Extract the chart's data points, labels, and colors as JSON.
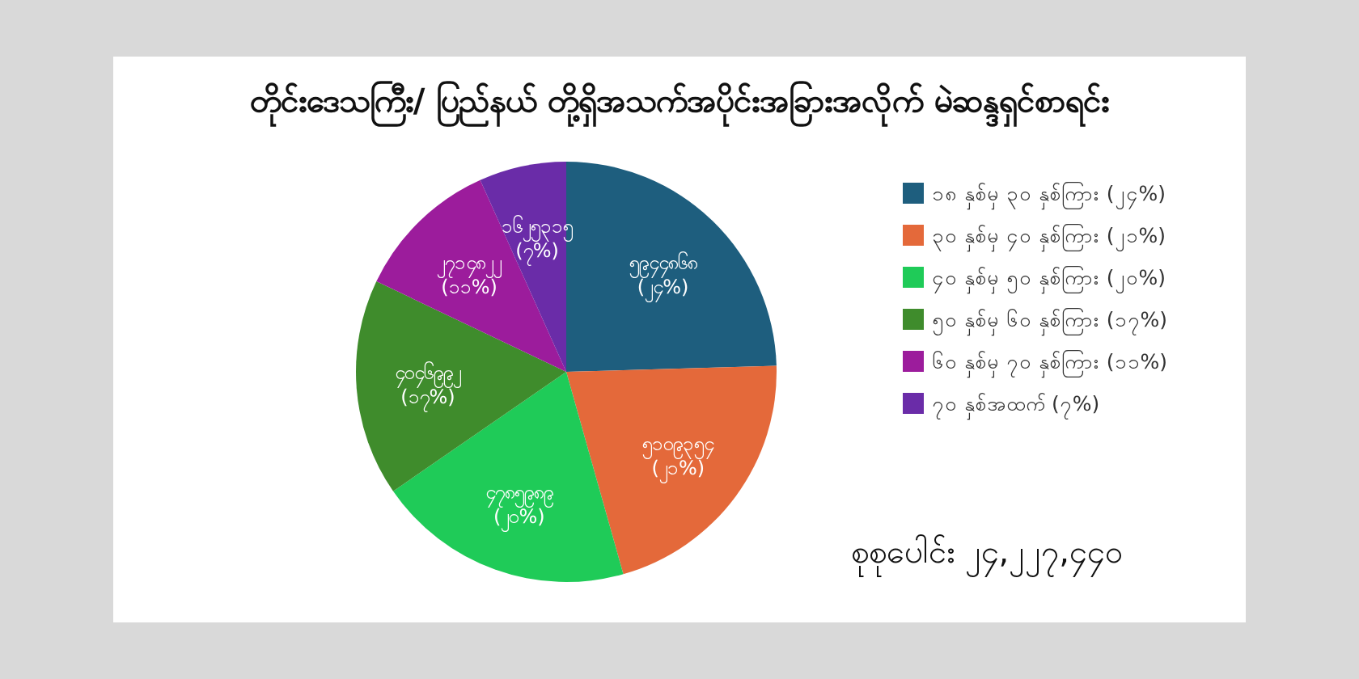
{
  "chart_data": {
    "type": "pie",
    "title": "တိုင်းဒေသကြီး/ ပြည်နယ် တို့ရှိအသက်အပိုင်းအခြားအလိုက် မဲဆန္ဒရှင်စာရင်း",
    "categories": [
      "၁၈ နှစ်မှ ၃၀ နှစ်ကြား (၂၄%)",
      "၃၀ နှစ်မှ ၄၀ နှစ်ကြား (၂၁%)",
      "၄၀ နှစ်မှ ၅၀ နှစ်ကြား (၂၀%)",
      "၅၀ နှစ်မှ ၆၀ နှစ်ကြား (၁၇%)",
      "၆၀ နှစ်မှ ၇၀ နှစ်ကြား (၁၁%)",
      "၇၀ နှစ်အထက် (၇%)"
    ],
    "values": [
      5944868,
      5109354,
      4785989,
      4046992,
      2714822,
      1625315
    ],
    "value_labels": [
      "၅၉၄၄၈၆၈\n(၂၄%)",
      "၅၁၀၉၃၅၄\n(၂၁%)",
      "၄၇၈၅၉၈၉\n(၂၀%)",
      "၄၀၄၆၉၉၂\n(၁၇%)",
      "၂၇၁၄၈၂၂\n(၁၁%)",
      "၁၆၂၅၃၁၅\n(၇%)"
    ],
    "colors": [
      "#1e5e7e",
      "#e4693a",
      "#1fcb58",
      "#3f8c2c",
      "#9c1c9c",
      "#6a2ca8"
    ],
    "legend": "right",
    "annotations": [
      "စုစုပေါင်း ၂၄,၂၂၇,၄၄၀"
    ]
  }
}
